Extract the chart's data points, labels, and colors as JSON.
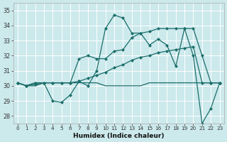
{
  "xlabel": "Humidex (Indice chaleur)",
  "bg_color": "#cce9ec",
  "grid_color": "#b0d8dc",
  "line_color": "#1a6e6a",
  "ylim": [
    27.5,
    35.5
  ],
  "xlim": [
    -0.5,
    23.5
  ],
  "yticks": [
    28,
    29,
    30,
    31,
    32,
    33,
    34,
    35
  ],
  "xticks": [
    0,
    1,
    2,
    3,
    4,
    5,
    6,
    7,
    8,
    9,
    10,
    11,
    12,
    13,
    14,
    15,
    16,
    17,
    18,
    19,
    20,
    21,
    22,
    23
  ],
  "series1": [
    30.2,
    30.0,
    30.2,
    30.2,
    29.0,
    28.9,
    29.4,
    30.3,
    30.0,
    31.0,
    33.8,
    34.7,
    34.5,
    33.5,
    33.5,
    32.7,
    33.1,
    32.7,
    31.3,
    33.8,
    32.0,
    27.5,
    28.5,
    30.2
  ],
  "series2": [
    30.2,
    30.0,
    30.2,
    30.2,
    30.2,
    30.2,
    30.2,
    31.8,
    32.0,
    31.8,
    31.8,
    32.3,
    32.4,
    33.2,
    33.5,
    33.6,
    33.8,
    33.8,
    33.8,
    33.8,
    33.8,
    32.0,
    30.2,
    30.2
  ],
  "series3": [
    30.2,
    30.0,
    30.1,
    30.2,
    30.2,
    30.2,
    30.2,
    30.3,
    30.5,
    30.7,
    30.9,
    31.2,
    31.4,
    31.7,
    31.9,
    32.0,
    32.2,
    32.3,
    32.4,
    32.5,
    32.6,
    30.2,
    30.2,
    30.2
  ],
  "series4": [
    30.2,
    30.0,
    30.0,
    30.2,
    30.2,
    30.2,
    30.2,
    30.2,
    30.2,
    30.2,
    30.0,
    30.0,
    30.0,
    30.0,
    30.0,
    30.2,
    30.2,
    30.2,
    30.2,
    30.2,
    30.2,
    30.2,
    30.2,
    30.2
  ]
}
